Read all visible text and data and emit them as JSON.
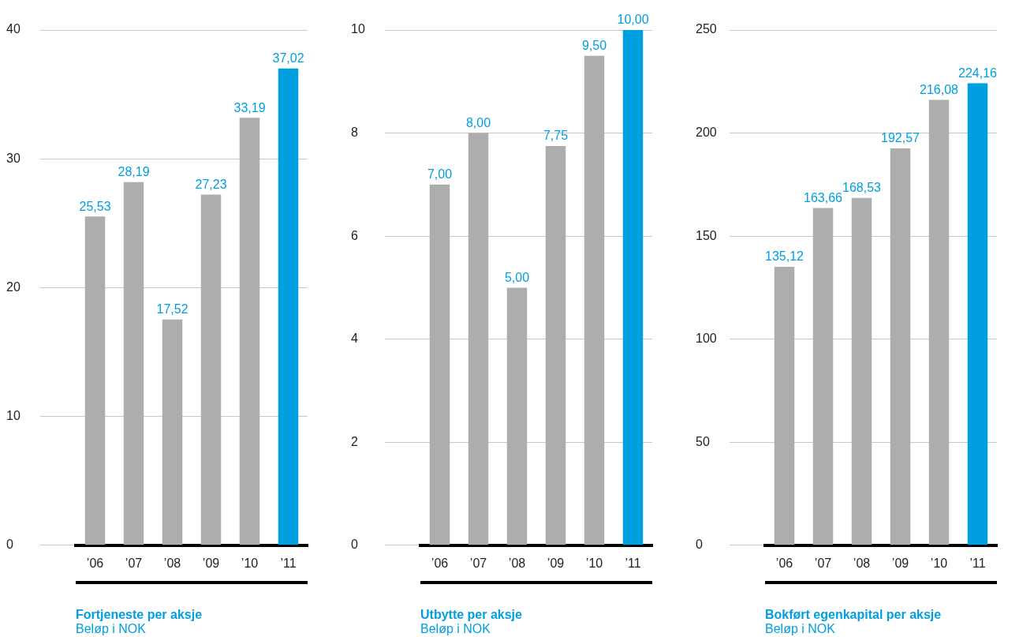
{
  "chart_data": [
    {
      "type": "bar",
      "title": "Fortjeneste per aksje",
      "subtitle": "Beløp i NOK",
      "categories": [
        "’06",
        "’07",
        "’08",
        "’09",
        "’10",
        "’11"
      ],
      "values": [
        25.53,
        28.19,
        17.52,
        27.23,
        33.19,
        37.02
      ],
      "value_labels": [
        "25,53",
        "28,19",
        "17,52",
        "27,23",
        "33,19",
        "37,02"
      ],
      "colors": [
        "#adadad",
        "#adadad",
        "#adadad",
        "#adadad",
        "#adadad",
        "#009fe0"
      ],
      "ylim": [
        0,
        40
      ],
      "yticks": [
        0,
        10,
        20,
        30,
        40
      ],
      "grid": "y"
    },
    {
      "type": "bar",
      "title": "Utbytte per aksje",
      "subtitle": "Beløp i NOK",
      "categories": [
        "’06",
        "’07",
        "’08",
        "’09",
        "’10",
        "’11"
      ],
      "values": [
        7.0,
        8.0,
        5.0,
        7.75,
        9.5,
        10.0
      ],
      "value_labels": [
        "7,00",
        "8,00",
        "5,00",
        "7,75",
        "9,50",
        "10,00"
      ],
      "colors": [
        "#adadad",
        "#adadad",
        "#adadad",
        "#adadad",
        "#adadad",
        "#009fe0"
      ],
      "ylim": [
        0,
        10
      ],
      "yticks": [
        0,
        2,
        4,
        6,
        8,
        10
      ],
      "grid": "y"
    },
    {
      "type": "bar",
      "title": "Bokført egenkapital per aksje",
      "subtitle": "Beløp i NOK",
      "categories": [
        "’06",
        "’07",
        "’08",
        "’09",
        "’10",
        "’11"
      ],
      "values": [
        135.12,
        163.66,
        168.53,
        192.57,
        216.08,
        224.16
      ],
      "value_labels": [
        "135,12",
        "163,66",
        "168,53",
        "192,57",
        "216,08",
        "224,16"
      ],
      "colors": [
        "#adadad",
        "#adadad",
        "#adadad",
        "#adadad",
        "#adadad",
        "#009fe0"
      ],
      "ylim": [
        0,
        250
      ],
      "yticks": [
        0,
        50,
        100,
        150,
        200,
        250
      ],
      "grid": "y"
    }
  ]
}
